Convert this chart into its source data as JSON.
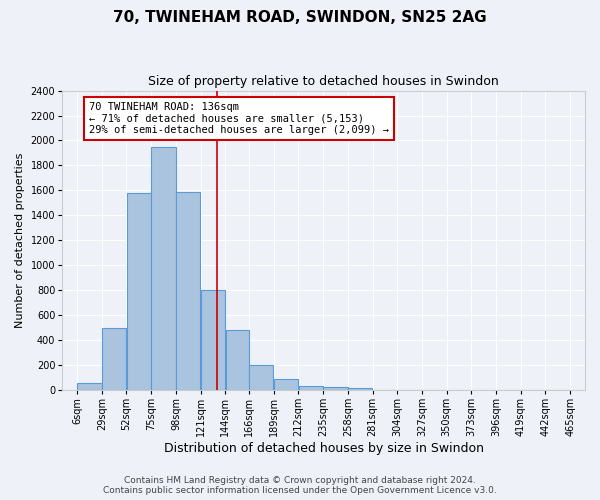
{
  "title": "70, TWINEHAM ROAD, SWINDON, SN25 2AG",
  "subtitle": "Size of property relative to detached houses in Swindon",
  "xlabel": "Distribution of detached houses by size in Swindon",
  "ylabel": "Number of detached properties",
  "footer_line1": "Contains HM Land Registry data © Crown copyright and database right 2024.",
  "footer_line2": "Contains public sector information licensed under the Open Government Licence v3.0.",
  "bin_labels": [
    "6sqm",
    "29sqm",
    "52sqm",
    "75sqm",
    "98sqm",
    "121sqm",
    "144sqm",
    "166sqm",
    "189sqm",
    "212sqm",
    "235sqm",
    "258sqm",
    "281sqm",
    "304sqm",
    "327sqm",
    "350sqm",
    "373sqm",
    "396sqm",
    "419sqm",
    "442sqm",
    "465sqm"
  ],
  "bin_edges": [
    6,
    29,
    52,
    75,
    98,
    121,
    144,
    166,
    189,
    212,
    235,
    258,
    281,
    304,
    327,
    350,
    373,
    396,
    419,
    442,
    465
  ],
  "bar_heights": [
    60,
    500,
    1580,
    1950,
    1590,
    800,
    480,
    200,
    90,
    35,
    25,
    20,
    5,
    3,
    2,
    1,
    0,
    0,
    0,
    0
  ],
  "bar_color": "#aac4e0",
  "bar_edge_color": "#5b9bd5",
  "red_line_x": 136,
  "annotation_text": "70 TWINEHAM ROAD: 136sqm\n← 71% of detached houses are smaller (5,153)\n29% of semi-detached houses are larger (2,099) →",
  "annotation_box_color": "#ffffff",
  "annotation_border_color": "#cc0000",
  "vline_color": "#cc0000",
  "ylim": [
    0,
    2400
  ],
  "yticks": [
    0,
    200,
    400,
    600,
    800,
    1000,
    1200,
    1400,
    1600,
    1800,
    2000,
    2200,
    2400
  ],
  "background_color": "#eef2f8",
  "grid_color": "#ffffff",
  "title_fontsize": 11,
  "subtitle_fontsize": 9,
  "xlabel_fontsize": 9,
  "ylabel_fontsize": 8,
  "tick_fontsize": 7,
  "footer_fontsize": 6.5,
  "annotation_fontsize": 7.5
}
